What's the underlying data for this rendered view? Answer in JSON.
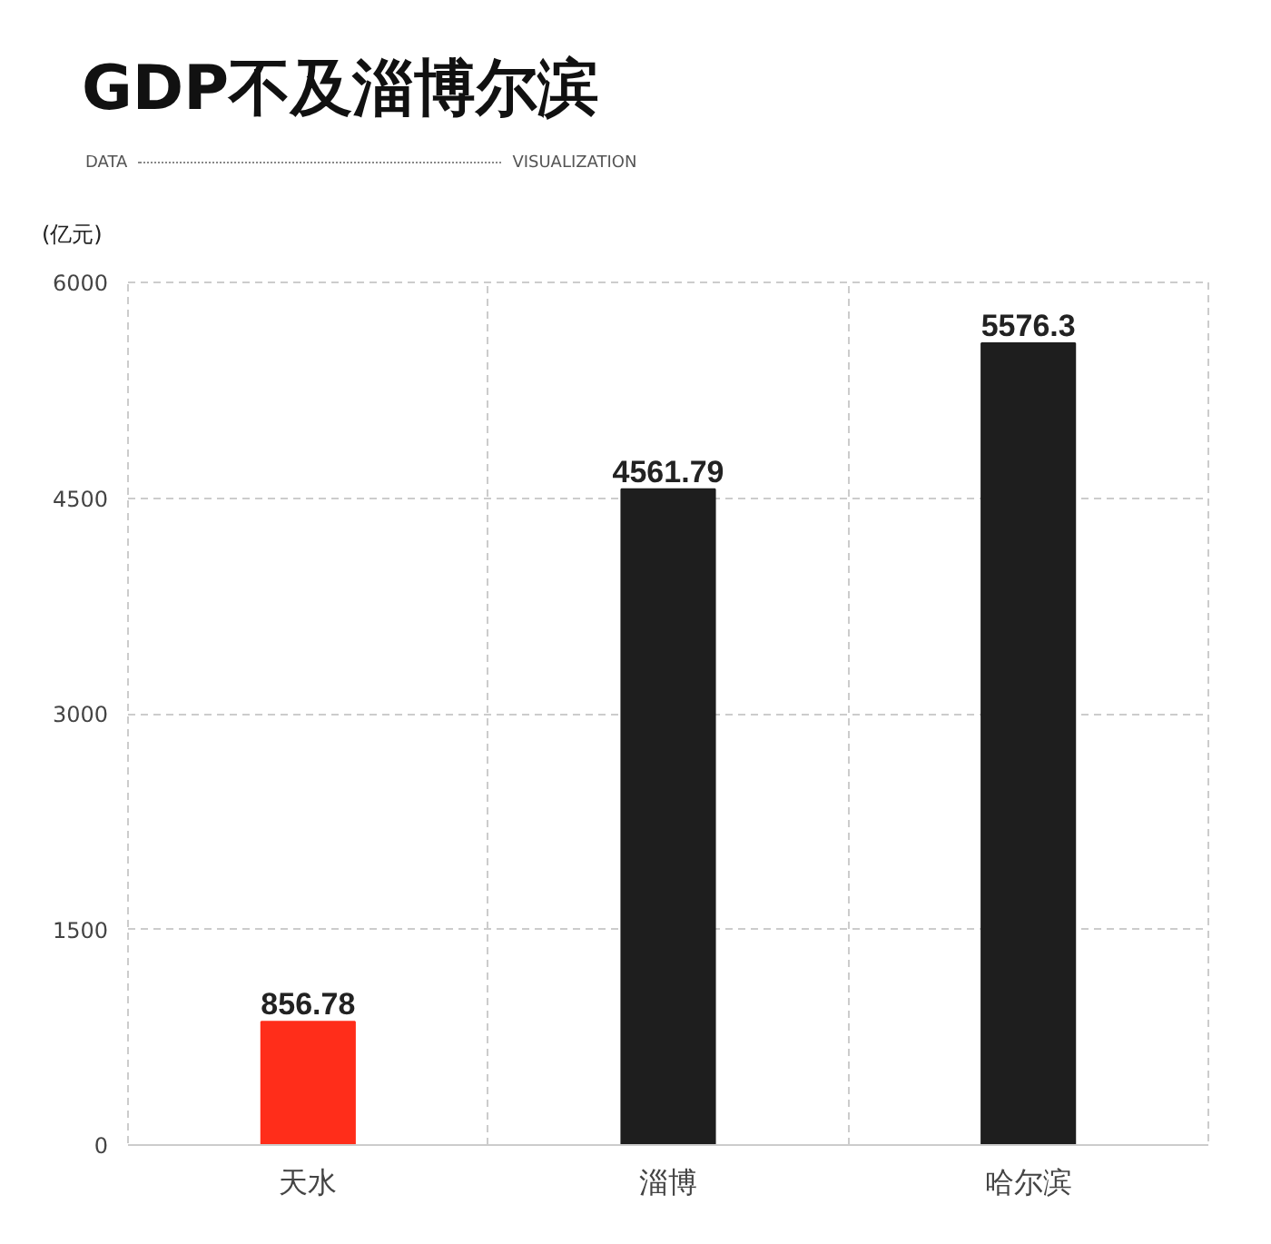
{
  "chart_data": {
    "type": "bar",
    "title": "GDP不及淄博尔滨",
    "annotations": [
      "DATA",
      "VISUALIZATION"
    ],
    "ylabel": "(亿元)",
    "categories": [
      "天水",
      "淄博",
      "哈尔滨"
    ],
    "values": [
      856.78,
      4561.79,
      5576.3
    ],
    "colors": [
      "#ff2d1a",
      "#1e1e1e",
      "#1e1e1e"
    ],
    "ylim": [
      0,
      6000
    ],
    "yticks": [
      0,
      1500,
      3000,
      4500,
      6000
    ],
    "grid": true,
    "data_labels": true
  }
}
